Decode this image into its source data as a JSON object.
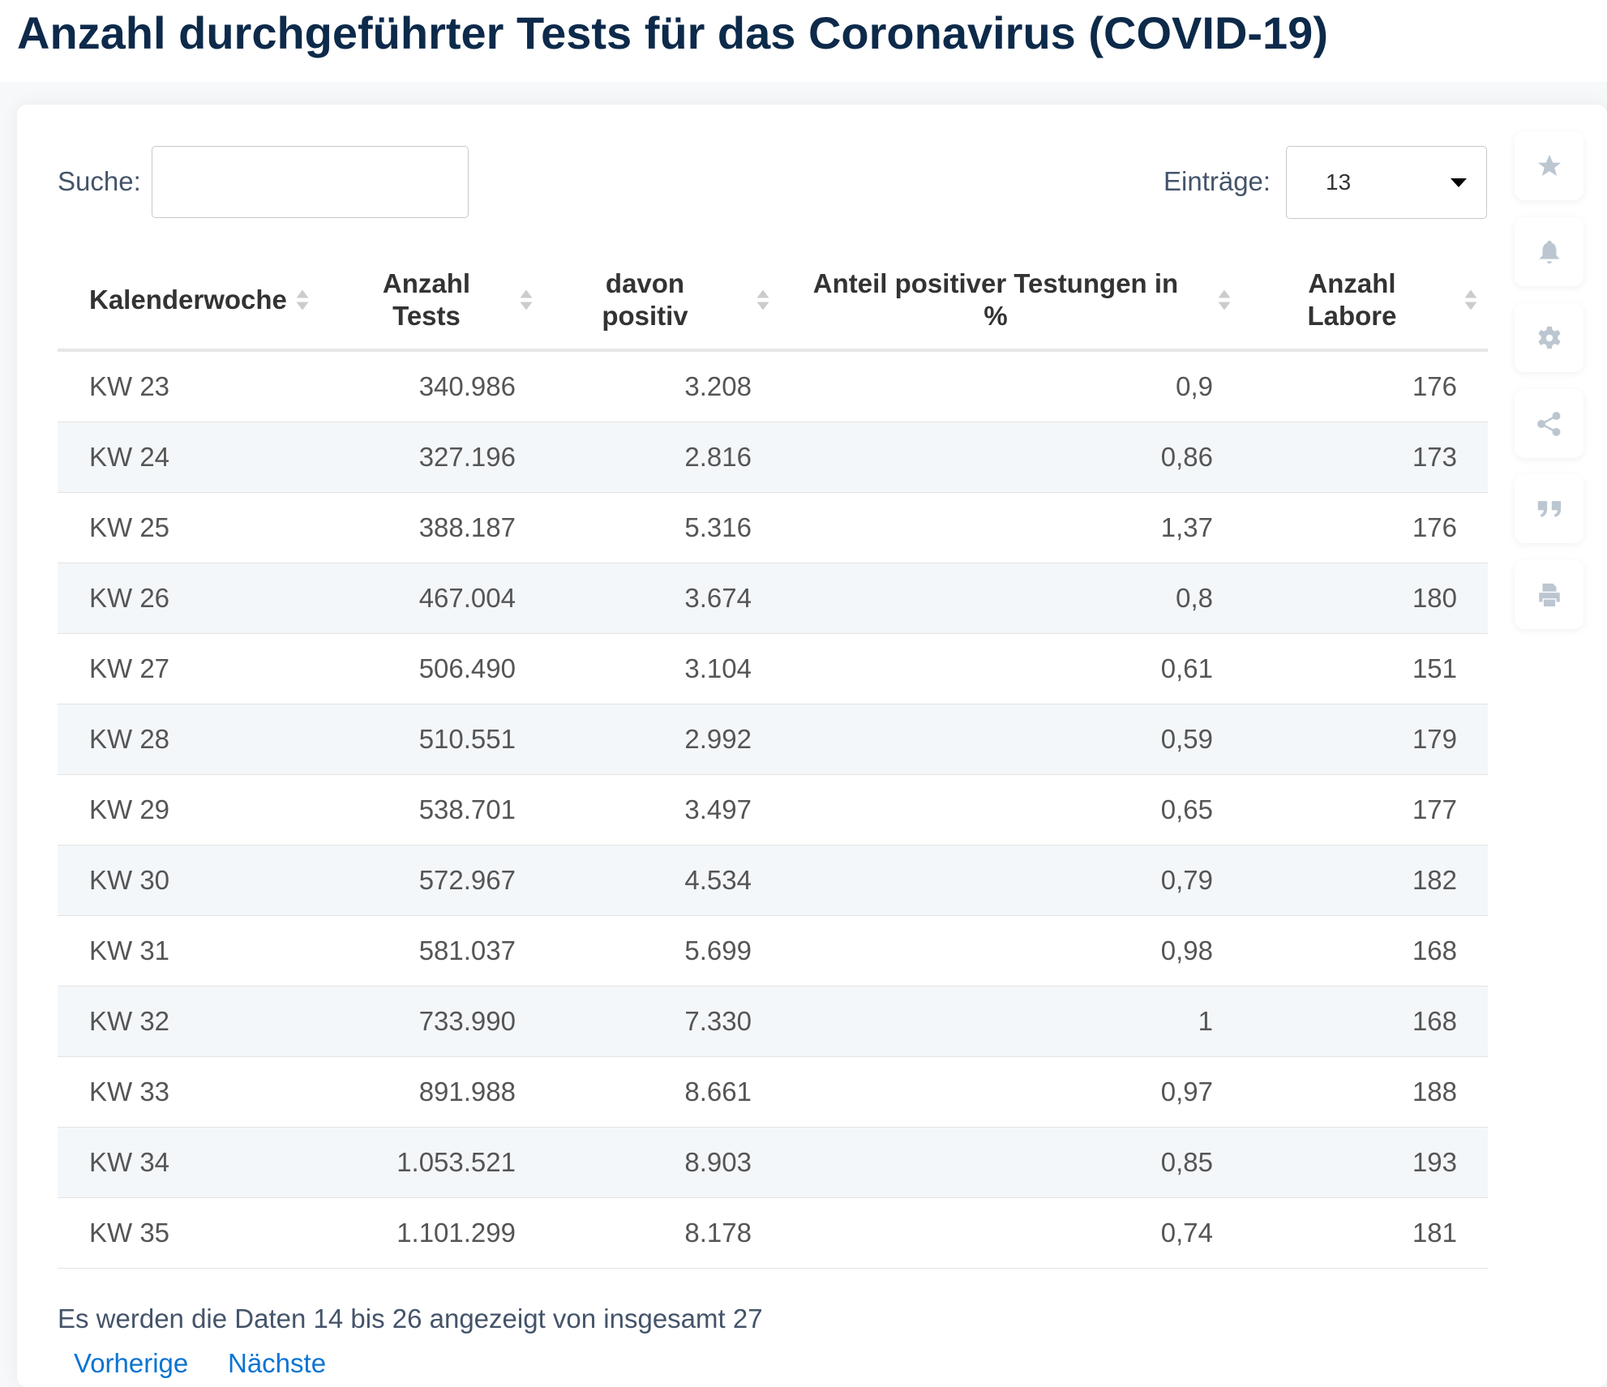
{
  "title": "Anzahl durchgeführter Tests für das Coronavirus (COVID-19)",
  "search": {
    "label": "Suche:",
    "value": ""
  },
  "entries": {
    "label": "Einträge:",
    "value": "13"
  },
  "side_icons": [
    "star-icon",
    "bell-icon",
    "gear-icon",
    "share-icon",
    "quote-icon",
    "print-icon"
  ],
  "table": {
    "headers": [
      "Kalenderwoche",
      "Anzahl Tests",
      "davon positiv",
      "Anteil positiver Testungen in %",
      "Anzahl Labore"
    ],
    "rows": [
      [
        "KW 23",
        "340.986",
        "3.208",
        "0,9",
        "176"
      ],
      [
        "KW 24",
        "327.196",
        "2.816",
        "0,86",
        "173"
      ],
      [
        "KW 25",
        "388.187",
        "5.316",
        "1,37",
        "176"
      ],
      [
        "KW 26",
        "467.004",
        "3.674",
        "0,8",
        "180"
      ],
      [
        "KW 27",
        "506.490",
        "3.104",
        "0,61",
        "151"
      ],
      [
        "KW 28",
        "510.551",
        "2.992",
        "0,59",
        "179"
      ],
      [
        "KW 29",
        "538.701",
        "3.497",
        "0,65",
        "177"
      ],
      [
        "KW 30",
        "572.967",
        "4.534",
        "0,79",
        "182"
      ],
      [
        "KW 31",
        "581.037",
        "5.699",
        "0,98",
        "168"
      ],
      [
        "KW 32",
        "733.990",
        "7.330",
        "1",
        "168"
      ],
      [
        "KW 33",
        "891.988",
        "8.661",
        "0,97",
        "188"
      ],
      [
        "KW 34",
        "1.053.521",
        "8.903",
        "0,85",
        "193"
      ],
      [
        "KW 35",
        "1.101.299",
        "8.178",
        "0,74",
        "181"
      ]
    ]
  },
  "footer": {
    "info": "Es werden die Daten 14 bis 26 angezeigt von insgesamt 27",
    "prev": "Vorherige",
    "next": "Nächste"
  },
  "colors": {
    "title": "#0d2a4a",
    "link": "#0a74d1",
    "stripe": "#f4f7fa",
    "icon": "#bcc6d1"
  }
}
